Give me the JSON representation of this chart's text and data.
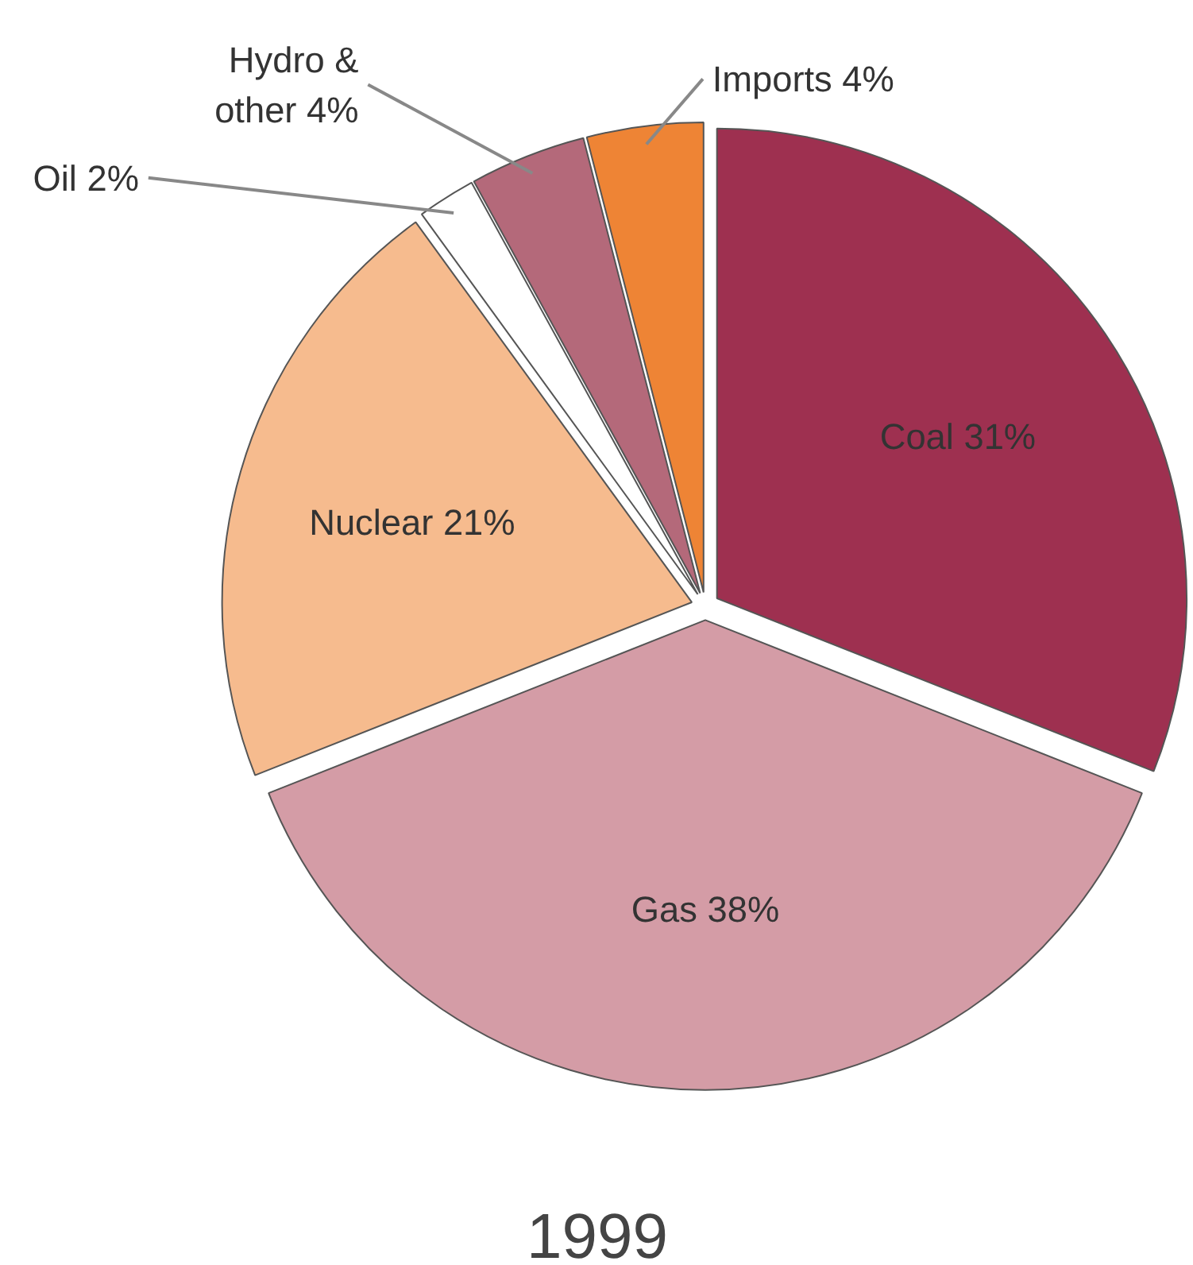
{
  "chart_data": {
    "type": "pie",
    "title": "1999",
    "categories": [
      "Coal",
      "Gas",
      "Nuclear",
      "Oil",
      "Hydro & other",
      "Imports"
    ],
    "values": [
      31,
      38,
      21,
      2,
      4,
      4
    ],
    "colors": [
      "#9e3050",
      "#d49ca6",
      "#f6bb8e",
      "#ffffff",
      "#b4697a",
      "#ee8435"
    ],
    "value_labels": [
      "31%",
      "38%",
      "21%",
      "2%",
      "4%",
      "4%"
    ]
  }
}
